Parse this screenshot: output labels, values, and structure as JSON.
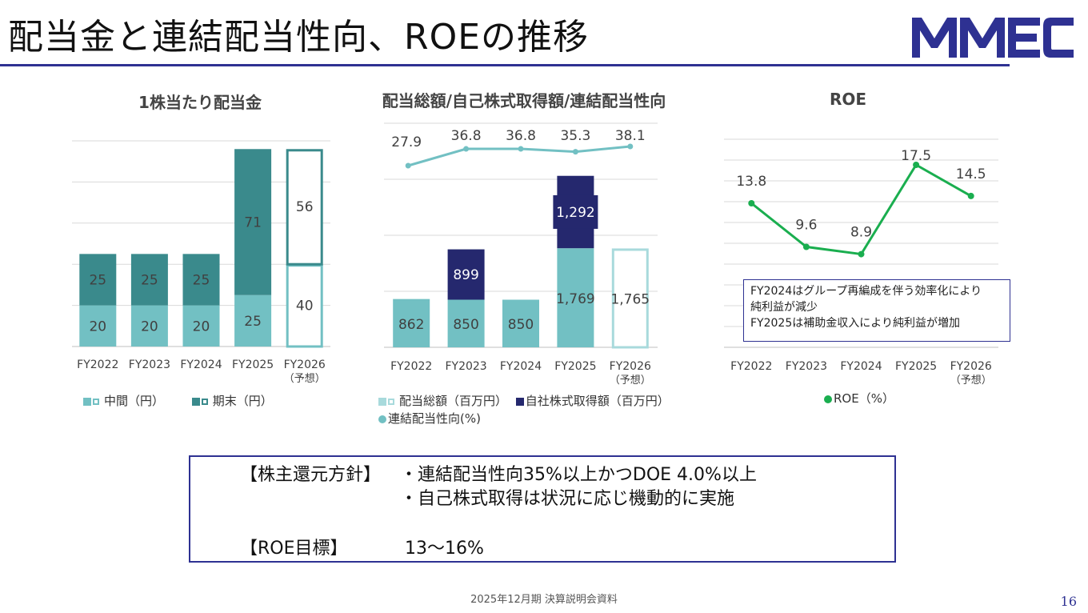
{
  "page": {
    "title": "配当金と連結配当性向、ROEの推移",
    "logo_text": "MMEC",
    "footer": "2025年12月期 決算説明会資料",
    "page_number": "16"
  },
  "colors": {
    "navy": "#2e3192",
    "teal_light": "#72c0c3",
    "teal_dark": "#3a8a8c",
    "dark_navy": "#25286e",
    "green": "#1aae4f"
  },
  "notes": {
    "roe_line1": "FY2024はグループ再編成を伴う効率化により",
    "roe_line2": "純利益が減少",
    "roe_line3": "FY2025は補助金収入により純利益が増加"
  },
  "policy": {
    "label1": "【株主還元方針】",
    "item1": "・連結配当性向35%以上かつDOE 4.0%以上",
    "item2": "・自己株式取得は状況に応じ機動的に実施",
    "label2": "【ROE目標】",
    "target": "13～16%"
  },
  "chart_data": [
    {
      "type": "bar",
      "title": "1株当たり配当金",
      "categories": [
        "FY2022",
        "FY2023",
        "FY2024",
        "FY2025",
        "FY2026"
      ],
      "category_sub": [
        "",
        "",
        "",
        "",
        "（予想）"
      ],
      "series": [
        {
          "name": "中間（円）",
          "values": [
            20,
            20,
            20,
            25,
            40
          ]
        },
        {
          "name": "期末（円）",
          "values": [
            25,
            25,
            25,
            71,
            56
          ]
        }
      ],
      "stacked": true,
      "forecast_index": 4,
      "ylim": [
        0,
        100
      ],
      "grid": true,
      "legend": "bottom"
    },
    {
      "type": "bar",
      "title": "配当総額/自己株式取得額/連結配当性向",
      "categories": [
        "FY2022",
        "FY2023",
        "FY2024",
        "FY2025",
        "FY2026"
      ],
      "category_sub": [
        "",
        "",
        "",
        "",
        "（予想）"
      ],
      "series": [
        {
          "name": "配当総額（百万円）",
          "values": [
            862,
            850,
            850,
            1769,
            1765
          ]
        },
        {
          "name": "自社株式取得額（百万円）",
          "values": [
            0,
            899,
            0,
            1292,
            0
          ]
        }
      ],
      "line_series": {
        "name": "連結配当性向(%)",
        "values": [
          27.9,
          36.8,
          36.8,
          35.3,
          38.1
        ]
      },
      "stacked": true,
      "forecast_index": 4,
      "ylim": [
        0,
        4000
      ],
      "grid": true,
      "legend": "bottom"
    },
    {
      "type": "line",
      "title": "ROE",
      "categories": [
        "FY2022",
        "FY2023",
        "FY2024",
        "FY2025",
        "FY2026"
      ],
      "category_sub": [
        "",
        "",
        "",
        "",
        "（予想）"
      ],
      "series": [
        {
          "name": "ROE（%）",
          "values": [
            13.8,
            9.6,
            8.9,
            17.5,
            14.5
          ]
        }
      ],
      "ylim": [
        0,
        20
      ],
      "grid": true,
      "legend": "bottom"
    }
  ]
}
